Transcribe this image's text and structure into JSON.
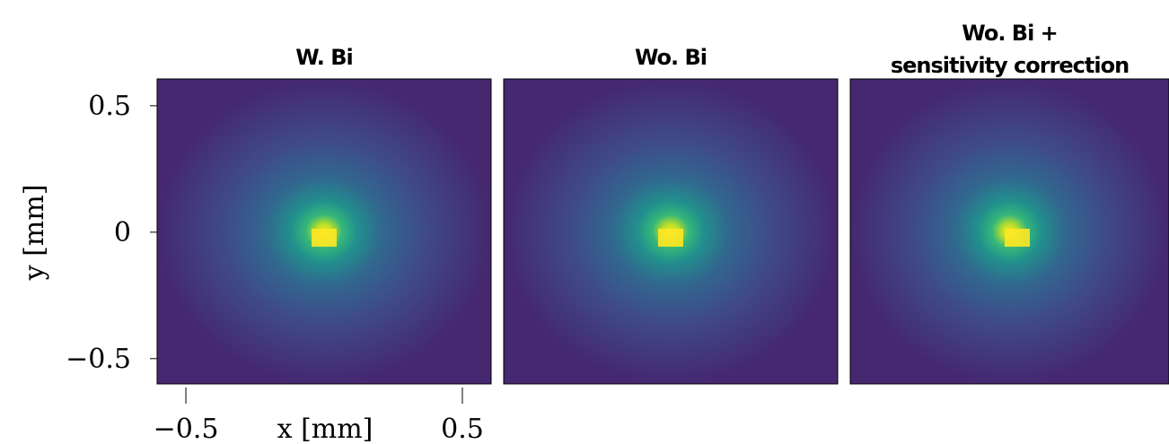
{
  "chart_data": [
    {
      "type": "heatmap",
      "title": "W. Bi",
      "xlabel": "x [mm]",
      "ylabel": "y [mm]",
      "xlim": [
        -0.604,
        0.604
      ],
      "ylim": [
        -0.6,
        0.606
      ],
      "xticks": [
        {
          "value": -0.5,
          "label": "−0.5"
        },
        0.5
      ],
      "yticks": [
        0.5,
        0,
        {
          "value": -0.5,
          "label": "−0.5"
        }
      ]
    },
    {
      "type": "heatmap",
      "title": "Wo. Bi"
    },
    {
      "type": "heatmap",
      "title": [
        "Wo. Bi +",
        "sensitivity correction"
      ]
    }
  ]
}
